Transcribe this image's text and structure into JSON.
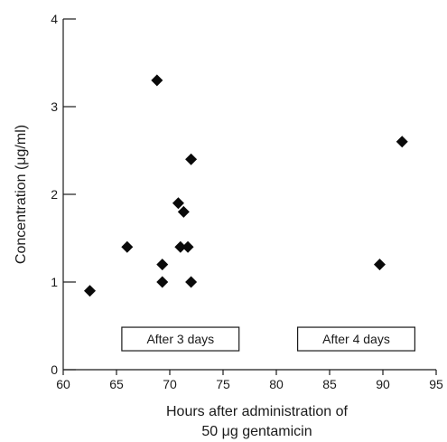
{
  "chart_data": {
    "type": "scatter",
    "xlabel_lines": [
      "Hours after administration of",
      "50 μg gentamicin"
    ],
    "ylabel": "Concentration (μg/ml)",
    "xlim": [
      60,
      95
    ],
    "ylim": [
      0,
      4
    ],
    "x_ticks": [
      "60",
      "65",
      "70",
      "75",
      "80",
      "85",
      "90",
      "95"
    ],
    "y_ticks": [
      "0",
      "1",
      "2",
      "3",
      "4"
    ],
    "grid": false,
    "marker": "diamond",
    "annotations": [
      {
        "text": "After 3 days",
        "x_range": [
          65.5,
          76.5
        ],
        "y": 0.35
      },
      {
        "text": "After 4 days",
        "x_range": [
          82,
          93
        ],
        "y": 0.35
      }
    ],
    "points": [
      {
        "x": 62.5,
        "y": 0.9
      },
      {
        "x": 66,
        "y": 1.4
      },
      {
        "x": 68.8,
        "y": 3.3
      },
      {
        "x": 69.3,
        "y": 1.2
      },
      {
        "x": 69.3,
        "y": 1.0
      },
      {
        "x": 70.8,
        "y": 1.9
      },
      {
        "x": 71,
        "y": 1.4
      },
      {
        "x": 71.3,
        "y": 1.8
      },
      {
        "x": 71.7,
        "y": 1.4
      },
      {
        "x": 72,
        "y": 2.4
      },
      {
        "x": 72,
        "y": 1.0
      },
      {
        "x": 89.7,
        "y": 1.2
      },
      {
        "x": 91.8,
        "y": 2.6
      }
    ]
  }
}
